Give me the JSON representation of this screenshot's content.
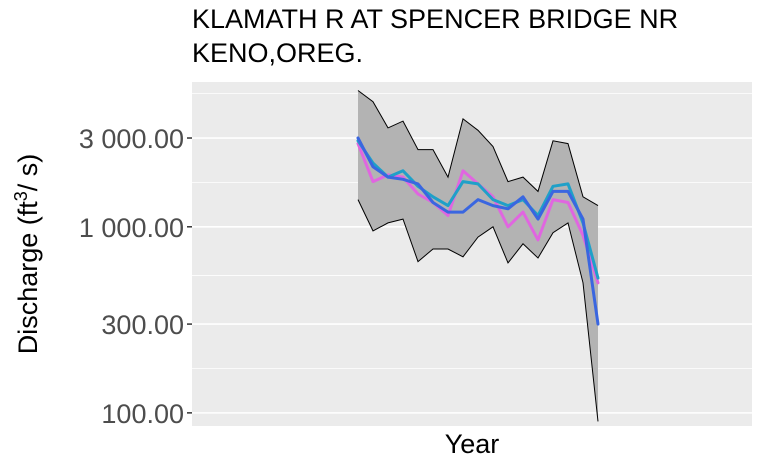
{
  "chart_data": {
    "type": "line",
    "title_lines": [
      "KLAMATH R AT SPENCER BRIDGE NR",
      "KENO,OREG."
    ],
    "xlabel": "Year",
    "ylabel": {
      "prefix": "Discharge (ft",
      "sup": "3",
      "suffix": "/ s)"
    },
    "y_scale": "log",
    "ylim": [
      85,
      6000
    ],
    "y_ticks": [
      {
        "value": 3000,
        "label": "3 000.00"
      },
      {
        "value": 1000,
        "label": "1 000.00"
      },
      {
        "value": 300,
        "label": "300.00"
      },
      {
        "value": 100,
        "label": "100.00"
      }
    ],
    "x_ticks": [],
    "grid": true,
    "band": {
      "color": "#b3b3b3",
      "upper": [
        5400,
        4700,
        3400,
        3700,
        2600,
        2600,
        1850,
        3800,
        3300,
        2700,
        1750,
        1850,
        1550,
        2900,
        2800,
        1450,
        1300
      ],
      "lower": [
        1400,
        950,
        1050,
        1100,
        650,
        760,
        760,
        690,
        880,
        1000,
        640,
        810,
        680,
        930,
        1050,
        500,
        90
      ]
    },
    "series": [
      {
        "color": "#e066e0",
        "values": [
          2800,
          1750,
          1900,
          1850,
          1500,
          1350,
          1150,
          2000,
          1700,
          1450,
          1000,
          1200,
          850,
          1400,
          1350,
          900,
          500
        ]
      },
      {
        "color": "#1fa0c8",
        "values": [
          2900,
          2200,
          1850,
          2000,
          1650,
          1450,
          1300,
          1750,
          1700,
          1400,
          1300,
          1400,
          1150,
          1650,
          1700,
          1050,
          530
        ]
      },
      {
        "color": "#3a66e0",
        "values": [
          3000,
          2100,
          1850,
          1800,
          1700,
          1350,
          1200,
          1200,
          1400,
          1300,
          1250,
          1450,
          1100,
          1550,
          1550,
          1100,
          300
        ]
      }
    ]
  }
}
